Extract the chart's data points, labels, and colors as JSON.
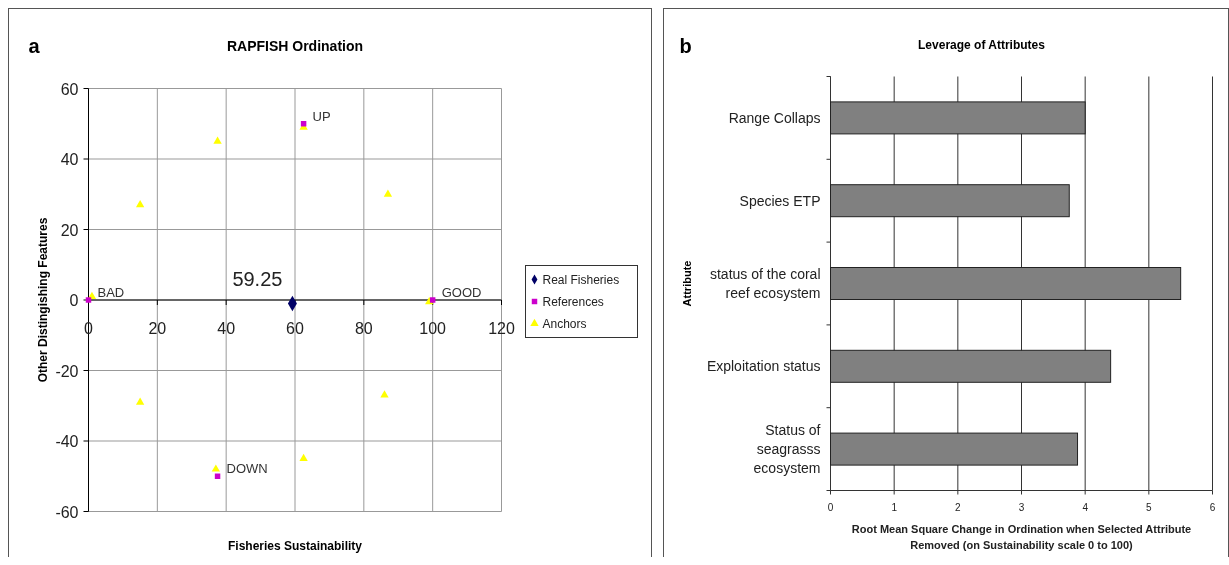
{
  "chart_data": [
    {
      "type": "scatter",
      "title": "RAPFISH Ordination",
      "xlabel": "Fisheries Sustainability",
      "ylabel": "Other Distingishing Features",
      "annotations": [
        "a",
        {
          "text": "59.25",
          "x": 59.25,
          "y": -1
        },
        {
          "text": "UP",
          "x": 62.5,
          "y": 50
        },
        {
          "text": "DOWN",
          "x": 37.5,
          "y": -50
        },
        {
          "text": "GOOD",
          "x": 100,
          "y": 0
        },
        {
          "text": "BAD",
          "x": 0,
          "y": 0
        }
      ],
      "xlim": [
        0,
        120
      ],
      "xticks": [
        0,
        20,
        40,
        60,
        80,
        100,
        120
      ],
      "ylim": [
        -60,
        60
      ],
      "yticks": [
        -60,
        -40,
        -20,
        0,
        20,
        40,
        60
      ],
      "grid": true,
      "legend": "right",
      "series": [
        {
          "name": "Real Fisheries",
          "color": "#000066",
          "marker": "diamond",
          "x": [
            59.25
          ],
          "values": [
            -1
          ]
        },
        {
          "name": "References",
          "color": "#cc00cc",
          "marker": "square",
          "x": [
            0,
            100,
            62.5,
            37.5
          ],
          "values": [
            0,
            0,
            50,
            -50
          ]
        },
        {
          "name": "Anchors",
          "color": "#ffff00",
          "marker": "triangle",
          "x": [
            1,
            15,
            37.5,
            62.5,
            87,
            99,
            15,
            37,
            62.5,
            86
          ],
          "values": [
            1,
            27,
            45,
            49,
            30,
            -0.5,
            -29,
            -48,
            -45,
            -27
          ]
        }
      ]
    },
    {
      "type": "bar",
      "orientation": "horizontal",
      "title": "Leverage of Attributes",
      "xlabel": "Root Mean Square Change in Ordination when Selected Attribute Removed (on Sustainability scale 0 to 100)",
      "ylabel": "Attribute",
      "annotations": [
        "b"
      ],
      "categories": [
        "Range Collaps",
        "Species ETP",
        "status of the coral reef ecosystem",
        "Exploitation status",
        "Status of seagrasss ecosystem"
      ],
      "values": [
        4.0,
        3.75,
        5.5,
        4.4,
        3.88
      ],
      "color": "#808080",
      "xlim": [
        0,
        6
      ],
      "xticks": [
        0,
        1,
        2,
        3,
        4,
        5,
        6
      ],
      "grid": "x"
    }
  ]
}
